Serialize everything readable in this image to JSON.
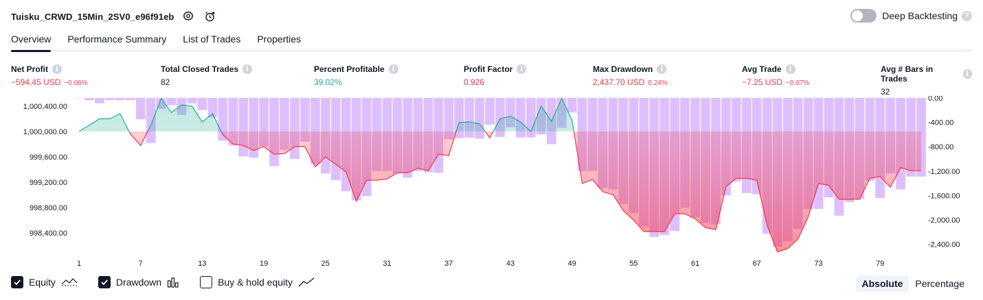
{
  "header": {
    "strategy_name": "Tuisku_CRWD_15Min_2SV0_e96f91eb",
    "deep_backtesting_label": "Deep Backtesting",
    "deep_backtesting_enabled": false
  },
  "tabs": [
    {
      "label": "Overview",
      "active": true
    },
    {
      "label": "Performance Summary",
      "active": false
    },
    {
      "label": "List of Trades",
      "active": false
    },
    {
      "label": "Properties",
      "active": false
    }
  ],
  "metrics": [
    {
      "label": "Net Profit",
      "value": "−594.45 USD",
      "pct": "−0.06%",
      "tone": "neg"
    },
    {
      "label": "Total Closed Trades",
      "value": "82",
      "pct": "",
      "tone": "neutral"
    },
    {
      "label": "Percent Profitable",
      "value": "39.02%",
      "pct": "",
      "tone": "pos"
    },
    {
      "label": "Profit Factor",
      "value": "0.926",
      "pct": "",
      "tone": "neg"
    },
    {
      "label": "Max Drawdown",
      "value": "2,437.70 USD",
      "pct": "0.24%",
      "tone": "neg"
    },
    {
      "label": "Avg Trade",
      "value": "−7.25 USD",
      "pct": "−0.07%",
      "tone": "neg"
    },
    {
      "label": "Avg # Bars in Trades",
      "value": "32",
      "pct": "",
      "tone": "neutral"
    }
  ],
  "legend": {
    "equity": {
      "label": "Equity",
      "checked": true
    },
    "drawdown": {
      "label": "Drawdown",
      "checked": true
    },
    "buy_hold": {
      "label": "Buy & hold equity",
      "checked": false
    }
  },
  "scale_switch": {
    "absolute": "Absolute",
    "percentage": "Percentage",
    "selected": "absolute"
  },
  "colors": {
    "equity_up": "#22ab94",
    "equity_down": "#f23645",
    "drawdown_bar": "#d8b4fe",
    "text": "#131722"
  },
  "chart_data": {
    "type": "area",
    "x_ticks": [
      "1",
      "7",
      "13",
      "19",
      "25",
      "31",
      "37",
      "43",
      "49",
      "55",
      "61",
      "67",
      "73",
      "79"
    ],
    "x_range": [
      1,
      83
    ],
    "left_axis": {
      "label": "Equity",
      "ticks": [
        "1,000,400.00",
        "1,000,000.00",
        "999,600.00",
        "999,200.00",
        "998,800.00",
        "998,400.00"
      ],
      "range": [
        998075,
        1000540
      ],
      "baseline": 1000000
    },
    "right_axis": {
      "label": "Drawdown",
      "ticks": [
        "0.00",
        "-400.00",
        "-800.00",
        "-1,200.00",
        "-1,600.00",
        "-2,000.00",
        "-2,400.00"
      ],
      "range": [
        -2550,
        10
      ]
    },
    "equity": [
      1000000,
      1000100,
      1000200,
      1000200,
      1000280,
      999960,
      999780,
      1000100,
      1000520,
      1000300,
      1000420,
      1000400,
      1000150,
      1000280,
      999950,
      999800,
      999780,
      999700,
      999760,
      999640,
      999650,
      999760,
      999760,
      999440,
      999600,
      999480,
      999360,
      998900,
      999230,
      999230,
      999250,
      999350,
      999350,
      999420,
      999380,
      999640,
      999620,
      1000140,
      1000150,
      1000120,
      999900,
      1000200,
      1000240,
      1000150,
      1000000,
      1000400,
      1000160,
      1000520,
      1000180,
      999180,
      999240,
      999050,
      999000,
      998750,
      998600,
      998420,
      998420,
      998420,
      998700,
      998700,
      998620,
      998480,
      998450,
      999130,
      999260,
      999260,
      999230,
      998520,
      998100,
      998150,
      998300,
      998650,
      999180,
      999150,
      998930,
      998930,
      998930,
      999260,
      999290,
      999120,
      999430,
      999380,
      999380
    ],
    "drawdown": [
      0,
      -40,
      -90,
      -40,
      -40,
      -40,
      -350,
      -740,
      -180,
      -120,
      -280,
      -90,
      -200,
      -320,
      -700,
      -780,
      -960,
      -980,
      -800,
      -1120,
      -850,
      -1000,
      -720,
      -1090,
      -1240,
      -1350,
      -1530,
      -1680,
      -1610,
      -1200,
      -1200,
      -1240,
      -1310,
      -1200,
      -1220,
      -1230,
      -680,
      -660,
      -650,
      -670,
      -440,
      -640,
      -480,
      -650,
      -650,
      -600,
      -760,
      -490,
      -240,
      -1200,
      -1200,
      -1480,
      -1500,
      -1740,
      -1890,
      -2110,
      -2280,
      -2250,
      -2180,
      -1800,
      -1960,
      -2050,
      -2070,
      -1600,
      -1370,
      -1560,
      -1580,
      -2230,
      -2440,
      -2350,
      -2150,
      -1820,
      -1820,
      -1630,
      -1930,
      -1710,
      -1660,
      -1360,
      -1640,
      -1240,
      -1500,
      -1290,
      -1290
    ]
  }
}
